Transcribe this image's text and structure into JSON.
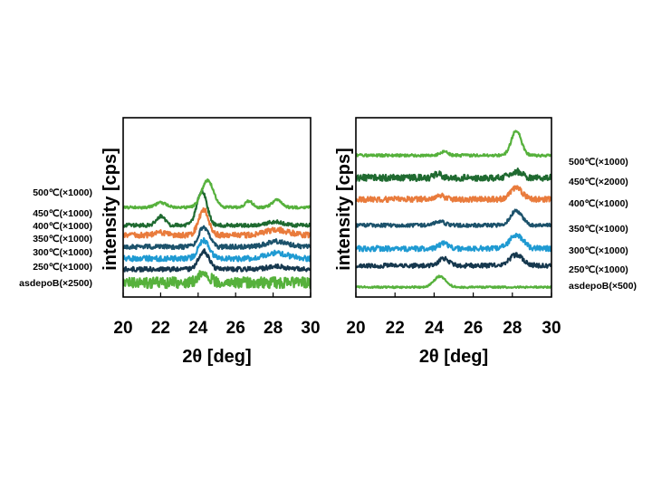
{
  "chart_data": [
    {
      "type": "line",
      "xlabel": "2θ [deg]",
      "ylabel": "intensity [cps]",
      "xlim": [
        20,
        30
      ],
      "xticks": [
        "20",
        "22",
        "24",
        "26",
        "28",
        "30"
      ],
      "yticks": false,
      "grid": false,
      "legend": "none",
      "series": [
        {
          "name": "asdepoB(×2500)",
          "color": "#56b13c",
          "noise": 6,
          "baseline": 0.08,
          "peaks": [
            {
              "x": 24.3,
              "h": 0.055,
              "w": 0.3
            }
          ]
        },
        {
          "name": "250℃(×1000)",
          "color": "#16384e",
          "noise": 2.5,
          "baseline": 0.155,
          "peaks": [
            {
              "x": 24.3,
              "h": 0.1,
              "w": 0.28
            },
            {
              "x": 28.2,
              "h": 0.015,
              "w": 0.5
            }
          ]
        },
        {
          "name": "300℃(×1000)",
          "color": "#1f9ad2",
          "noise": 3,
          "baseline": 0.215,
          "peaks": [
            {
              "x": 24.3,
              "h": 0.1,
              "w": 0.28
            },
            {
              "x": 28.2,
              "h": 0.03,
              "w": 0.55
            }
          ]
        },
        {
          "name": "350℃(×1000)",
          "color": "#1c526b",
          "noise": 2.5,
          "baseline": 0.28,
          "peaks": [
            {
              "x": 24.3,
              "h": 0.11,
              "w": 0.28
            },
            {
              "x": 28.2,
              "h": 0.03,
              "w": 0.55
            }
          ]
        },
        {
          "name": "400℃(×1000)",
          "color": "#e97b3c",
          "noise": 3,
          "baseline": 0.345,
          "peaks": [
            {
              "x": 24.3,
              "h": 0.14,
              "w": 0.27
            },
            {
              "x": 22.0,
              "h": 0.015,
              "w": 0.3
            },
            {
              "x": 28.2,
              "h": 0.03,
              "w": 0.6
            }
          ]
        },
        {
          "name": "450℃(×1000)",
          "color": "#1f6a30",
          "noise": 2,
          "baseline": 0.4,
          "peaks": [
            {
              "x": 24.2,
              "h": 0.19,
              "w": 0.27
            },
            {
              "x": 22.0,
              "h": 0.05,
              "w": 0.22
            },
            {
              "x": 28.1,
              "h": 0.02,
              "w": 0.4
            }
          ]
        },
        {
          "name": "500℃(×1000)",
          "color": "#56b13c",
          "noise": 1.5,
          "baseline": 0.5,
          "peaks": [
            {
              "x": 24.5,
              "h": 0.15,
              "w": 0.32
            },
            {
              "x": 22.0,
              "h": 0.025,
              "w": 0.3
            },
            {
              "x": 26.7,
              "h": 0.035,
              "w": 0.2
            },
            {
              "x": 28.2,
              "h": 0.04,
              "w": 0.25
            }
          ]
        }
      ]
    },
    {
      "type": "line",
      "xlabel": "2θ [deg]",
      "ylabel": "intensity [cps]",
      "xlim": [
        20,
        30
      ],
      "xticks": [
        "20",
        "22",
        "24",
        "26",
        "28",
        "30"
      ],
      "yticks": false,
      "grid": false,
      "legend": "none",
      "series": [
        {
          "name": "asdepoB(×500)",
          "color": "#56b13c",
          "noise": 1,
          "baseline": 0.055,
          "peaks": [
            {
              "x": 24.3,
              "h": 0.06,
              "w": 0.3
            }
          ]
        },
        {
          "name": "250℃(×1000)",
          "color": "#16384e",
          "noise": 2.5,
          "baseline": 0.175,
          "peaks": [
            {
              "x": 24.5,
              "h": 0.04,
              "w": 0.25
            },
            {
              "x": 28.2,
              "h": 0.06,
              "w": 0.35
            }
          ]
        },
        {
          "name": "300℃(×1000)",
          "color": "#1f9ad2",
          "noise": 3,
          "baseline": 0.27,
          "peaks": [
            {
              "x": 24.5,
              "h": 0.03,
              "w": 0.25
            },
            {
              "x": 28.2,
              "h": 0.075,
              "w": 0.35
            }
          ]
        },
        {
          "name": "350℃(×1000)",
          "color": "#1c526b",
          "noise": 2,
          "baseline": 0.4,
          "peaks": [
            {
              "x": 24.3,
              "h": 0.02,
              "w": 0.25
            },
            {
              "x": 28.2,
              "h": 0.08,
              "w": 0.3
            }
          ]
        },
        {
          "name": "400℃(×1000)",
          "color": "#e97b3c",
          "noise": 3,
          "baseline": 0.545,
          "peaks": [
            {
              "x": 24.3,
              "h": 0.02,
              "w": 0.25
            },
            {
              "x": 28.2,
              "h": 0.065,
              "w": 0.3
            }
          ]
        },
        {
          "name": "450℃(×2000)",
          "color": "#1f6a30",
          "noise": 3.5,
          "baseline": 0.665,
          "peaks": [
            {
              "x": 24.2,
              "h": 0.02,
              "w": 0.2
            },
            {
              "x": 28.2,
              "h": 0.035,
              "w": 0.3
            }
          ]
        },
        {
          "name": "500℃(×1000)",
          "color": "#56b13c",
          "noise": 1.5,
          "baseline": 0.79,
          "peaks": [
            {
              "x": 24.5,
              "h": 0.02,
              "w": 0.2
            },
            {
              "x": 28.2,
              "h": 0.14,
              "w": 0.25
            }
          ]
        }
      ]
    }
  ]
}
